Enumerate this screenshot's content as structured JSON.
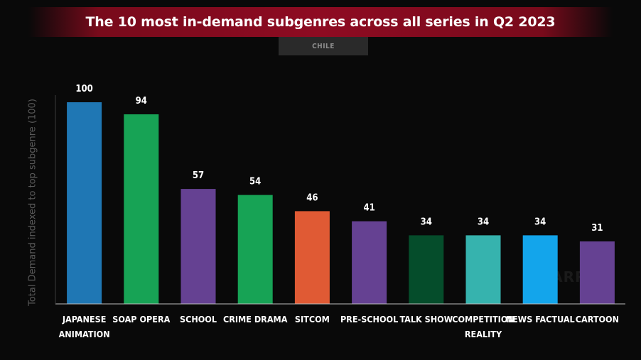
{
  "header": {
    "title": "The 10 most in-demand subgenres across all series in Q2 2023",
    "region": "CHILE"
  },
  "colors": {
    "background": "#090909",
    "title_bar": "#8e0b22",
    "region_tab": "#2a2a2a"
  },
  "chart_data": {
    "type": "bar",
    "title": "The 10 most in-demand subgenres across all series in Q2 2023",
    "subtitle": "CHILE",
    "xlabel": "",
    "ylabel": "Total Demand indexed to top subgenre (100)",
    "ylim": [
      0,
      100
    ],
    "grid": false,
    "categories": [
      [
        "JAPANESE",
        "ANIMATION"
      ],
      [
        "SOAP OPERA"
      ],
      [
        "SCHOOL"
      ],
      [
        "CRIME DRAMA"
      ],
      [
        "SITCOM"
      ],
      [
        "PRE-SCHOOL"
      ],
      [
        "TALK SHOW"
      ],
      [
        "COMPETITION",
        "REALITY"
      ],
      [
        "NEWS FACTUAL"
      ],
      [
        "CARTOON"
      ]
    ],
    "values": [
      100,
      94,
      57,
      54,
      46,
      41,
      34,
      34,
      34,
      31
    ],
    "bar_colors": [
      "#1f77b4",
      "#17a355",
      "#654192",
      "#17a355",
      "#e05a34",
      "#654192",
      "#054d2b",
      "#36b3ae",
      "#13a5eb",
      "#654192"
    ]
  }
}
